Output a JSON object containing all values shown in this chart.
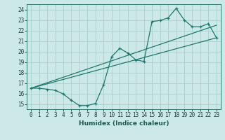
{
  "title": "",
  "xlabel": "Humidex (Indice chaleur)",
  "xlim": [
    -0.5,
    23.5
  ],
  "ylim": [
    14.5,
    24.5
  ],
  "xticks": [
    0,
    1,
    2,
    3,
    4,
    5,
    6,
    7,
    8,
    9,
    10,
    11,
    12,
    13,
    14,
    15,
    16,
    17,
    18,
    19,
    20,
    21,
    22,
    23
  ],
  "yticks": [
    15,
    16,
    17,
    18,
    19,
    20,
    21,
    22,
    23,
    24
  ],
  "bg_color": "#cce9e7",
  "grid_color": "#aacfcc",
  "line_color": "#1a7a6e",
  "line1_x": [
    0,
    1,
    2,
    3,
    4,
    5,
    6,
    7,
    8,
    9,
    10,
    11,
    12,
    13,
    14,
    15,
    16,
    17,
    18,
    19,
    20,
    21,
    22,
    23
  ],
  "line1_y": [
    16.5,
    16.5,
    16.4,
    16.3,
    15.95,
    15.35,
    14.85,
    14.85,
    15.05,
    16.85,
    19.5,
    20.3,
    19.85,
    19.2,
    19.05,
    22.85,
    22.95,
    23.2,
    24.1,
    23.0,
    22.35,
    22.35,
    22.65,
    21.3
  ],
  "line2_x": [
    0,
    23
  ],
  "line2_y": [
    16.5,
    21.3
  ],
  "line3_x": [
    0,
    23
  ],
  "line3_y": [
    16.5,
    22.5
  ]
}
